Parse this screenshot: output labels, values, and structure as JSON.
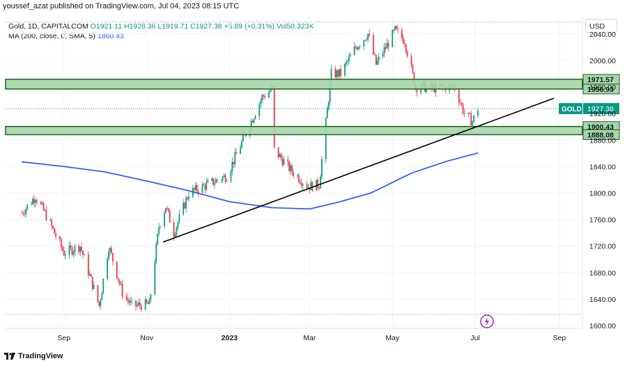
{
  "header": {
    "published": "youssef_azat published on TradingView.com, Jul 04, 2023 08:15 UTC"
  },
  "legend": {
    "symbol": "Gold, 1D, CAPITALCOM",
    "ohlc": "O1921.11 H1928.36 L1919.71 C1927.38 +5.89 (+0.31%) Vol50.323K",
    "ma_label": "MA (200, close, 0, SMA, 5)",
    "ma_value": "1860.43"
  },
  "currency": "USD",
  "footer": {
    "brand": "TradingView"
  },
  "colors": {
    "up": "#089981",
    "down": "#f23645",
    "ma": "#2962ff",
    "zone_fill": "#a5d6a7",
    "zone_border": "#1b5e20",
    "trend": "#000000"
  },
  "chart_data": {
    "type": "candlestick",
    "ylim": [
      1598,
      2066
    ],
    "y_ticks": [
      "2040.00",
      "2000.00",
      "1960.00",
      "1920.00",
      "1880.00",
      "1840.00",
      "1800.00",
      "1760.00",
      "1720.00",
      "1680.00",
      "1640.00",
      "1600.00"
    ],
    "x_ticks": [
      "Sep",
      "Nov",
      "2023",
      "Mar",
      "May",
      "Jul",
      "Sep"
    ],
    "price_anchors": [
      [
        "2022-08-01",
        1770
      ],
      [
        "2022-08-11",
        1795
      ],
      [
        "2022-08-18",
        1770
      ],
      [
        "2022-09-01",
        1710
      ],
      [
        "2022-09-13",
        1720
      ],
      [
        "2022-09-27",
        1630
      ],
      [
        "2022-10-04",
        1720
      ],
      [
        "2022-10-14",
        1650
      ],
      [
        "2022-10-21",
        1630
      ],
      [
        "2022-11-03",
        1632
      ],
      [
        "2022-11-10",
        1750
      ],
      [
        "2022-11-15",
        1780
      ],
      [
        "2022-11-21",
        1740
      ],
      [
        "2022-12-02",
        1800
      ],
      [
        "2022-12-30",
        1826
      ],
      [
        "2023-01-25",
        1945
      ],
      [
        "2023-02-02",
        1958
      ],
      [
        "2023-02-03",
        1865
      ],
      [
        "2023-02-15",
        1835
      ],
      [
        "2023-02-28",
        1810
      ],
      [
        "2023-03-08",
        1813
      ],
      [
        "2023-03-17",
        1980
      ],
      [
        "2023-03-24",
        1980
      ],
      [
        "2023-04-04",
        2020
      ],
      [
        "2023-04-13",
        2040
      ],
      [
        "2023-04-19",
        1994
      ],
      [
        "2023-05-03",
        2045
      ],
      [
        "2023-05-10",
        2030
      ],
      [
        "2023-05-18",
        1960
      ],
      [
        "2023-05-24",
        1960
      ],
      [
        "2023-05-30",
        1958
      ],
      [
        "2023-06-09",
        1960
      ],
      [
        "2023-06-16",
        1960
      ],
      [
        "2023-06-23",
        1920
      ],
      [
        "2023-06-29",
        1908
      ],
      [
        "2023-07-03",
        1927.38
      ]
    ],
    "ma_label": "MA 200",
    "ma_points": [
      [
        "2022-08-01",
        1847
      ],
      [
        "2022-08-15",
        1844
      ],
      [
        "2022-09-01",
        1840
      ],
      [
        "2022-10-01",
        1832
      ],
      [
        "2022-11-01",
        1818
      ],
      [
        "2022-12-01",
        1804
      ],
      [
        "2023-01-01",
        1787
      ],
      [
        "2023-02-01",
        1778
      ],
      [
        "2023-03-01",
        1776
      ],
      [
        "2023-03-22",
        1786
      ],
      [
        "2023-04-15",
        1800
      ],
      [
        "2023-05-15",
        1830
      ],
      [
        "2023-06-10",
        1848
      ],
      [
        "2023-07-03",
        1860.43
      ]
    ],
    "zones": [
      {
        "top": 1971.57,
        "bottom": 1956.93,
        "top_label": "1971.57",
        "bottom_label": "1956.93"
      },
      {
        "top": 1900.43,
        "bottom": 1888.08,
        "top_label": "1900.43",
        "bottom_label": "1888.08"
      }
    ],
    "trendline": {
      "start": [
        "2022-11-13",
        1726
      ],
      "end": [
        "2023-08-28",
        1943
      ]
    },
    "last_price": {
      "symbol": "GOLD",
      "value": "1927.38"
    }
  }
}
